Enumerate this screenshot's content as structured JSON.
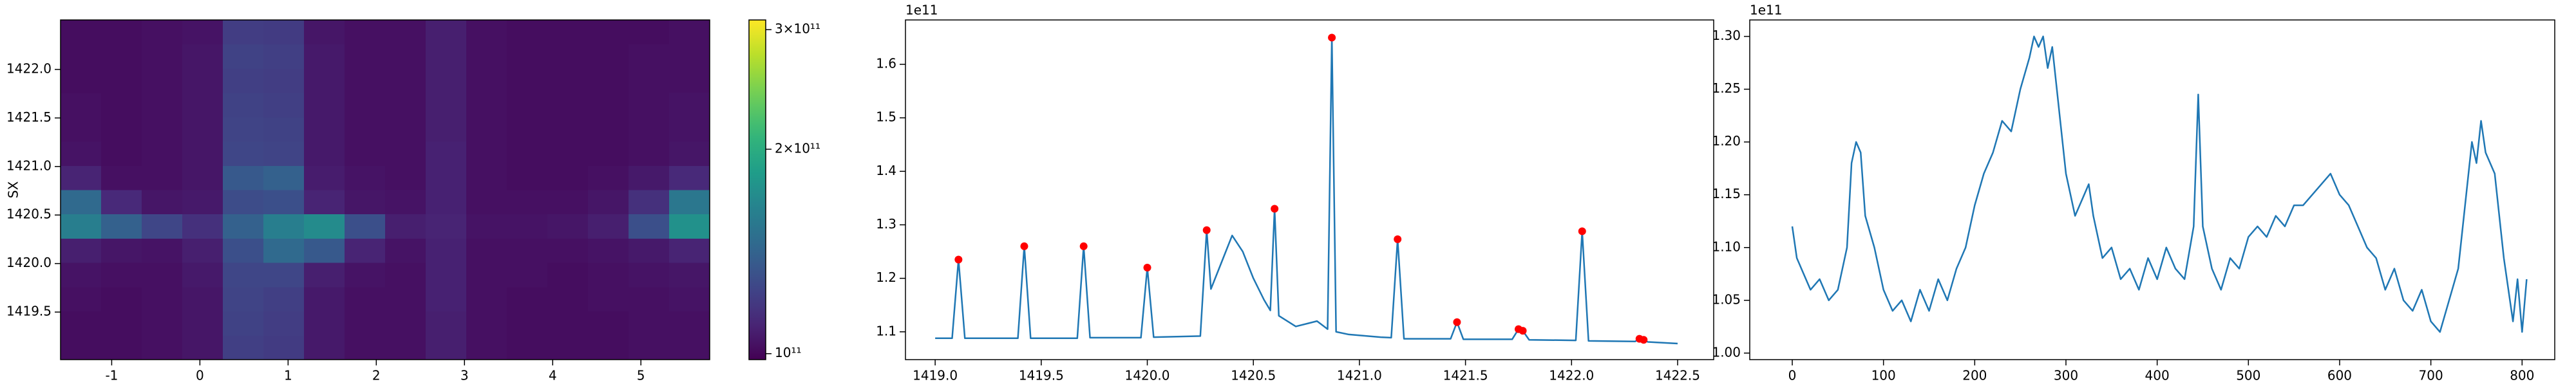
{
  "chart_data": [
    {
      "type": "heatmap",
      "y_label": "SX",
      "colormap": "viridis",
      "cscale": "log",
      "xlim": [
        -1.58,
        5.78
      ],
      "ylim": [
        1419.01,
        1422.51
      ],
      "xticks": [
        -1,
        0,
        1,
        2,
        3,
        4,
        5
      ],
      "yticks": [
        1419.5,
        {
          "value": 1420,
          "label": "1420.0"
        },
        1420.5,
        {
          "value": 1421,
          "label": "1421.0"
        },
        1421.5,
        {
          "value": 1422,
          "label": "1422.0"
        }
      ],
      "x_edges": [
        -1.58,
        -1.12,
        -0.66,
        -0.2,
        0.26,
        0.72,
        1.18,
        1.64,
        2.1,
        2.56,
        3.02,
        3.48,
        3.94,
        4.4,
        4.86,
        5.32,
        5.78
      ],
      "y_edges": [
        1419.01,
        1419.26,
        1419.51,
        1419.76,
        1420.01,
        1420.26,
        1420.51,
        1420.76,
        1421.01,
        1421.26,
        1421.51,
        1421.76,
        1422.01,
        1422.26,
        1422.51
      ],
      "z": [
        [
          102000000000.0,
          102000000000.0,
          103000000000.0,
          105000000000.0,
          122000000000.0,
          120000000000.0,
          106000000000.0,
          103000000000.0,
          103000000000.0,
          108000000000.0,
          103000000000.0,
          102000000000.0,
          102000000000.0,
          102000000000.0,
          103000000000.0,
          103000000000.0
        ],
        [
          102000000000.0,
          102000000000.0,
          103000000000.0,
          105000000000.0,
          123000000000.0,
          121000000000.0,
          106000000000.0,
          103000000000.0,
          103000000000.0,
          108000000000.0,
          103000000000.0,
          102000000000.0,
          102000000000.0,
          102000000000.0,
          103000000000.0,
          103000000000.0
        ],
        [
          103000000000.0,
          102000000000.0,
          103000000000.0,
          105000000000.0,
          124000000000.0,
          122000000000.0,
          106000000000.0,
          103000000000.0,
          103000000000.0,
          109000000000.0,
          103000000000.0,
          102000000000.0,
          102000000000.0,
          103000000000.0,
          103000000000.0,
          104000000000.0
        ],
        [
          104000000000.0,
          103000000000.0,
          103000000000.0,
          106000000000.0,
          125000000000.0,
          125000000000.0,
          108000000000.0,
          104000000000.0,
          103000000000.0,
          109000000000.0,
          103000000000.0,
          103000000000.0,
          102000000000.0,
          103000000000.0,
          104000000000.0,
          105000000000.0
        ],
        [
          108000000000.0,
          105000000000.0,
          104000000000.0,
          108000000000.0,
          130000000000.0,
          145000000000.0,
          135000000000.0,
          110000000000.0,
          104000000000.0,
          109000000000.0,
          103000000000.0,
          103000000000.0,
          103000000000.0,
          104000000000.0,
          106000000000.0,
          110000000000.0
        ],
        [
          160000000000.0,
          140000000000.0,
          125000000000.0,
          115000000000.0,
          140000000000.0,
          160000000000.0,
          170000000000.0,
          130000000000.0,
          108000000000.0,
          110000000000.0,
          104000000000.0,
          104000000000.0,
          105000000000.0,
          108000000000.0,
          130000000000.0,
          175000000000.0
        ],
        [
          145000000000.0,
          112000000000.0,
          105000000000.0,
          106000000000.0,
          128000000000.0,
          130000000000.0,
          110000000000.0,
          105000000000.0,
          104000000000.0,
          109000000000.0,
          103000000000.0,
          103000000000.0,
          103000000000.0,
          105000000000.0,
          115000000000.0,
          155000000000.0
        ],
        [
          110000000000.0,
          103000000000.0,
          103000000000.0,
          105000000000.0,
          135000000000.0,
          140000000000.0,
          107000000000.0,
          104000000000.0,
          103000000000.0,
          109000000000.0,
          103000000000.0,
          102000000000.0,
          102000000000.0,
          103000000000.0,
          106000000000.0,
          112000000000.0
        ],
        [
          104000000000.0,
          102000000000.0,
          103000000000.0,
          105000000000.0,
          125000000000.0,
          124000000000.0,
          106000000000.0,
          103000000000.0,
          103000000000.0,
          109000000000.0,
          103000000000.0,
          102000000000.0,
          102000000000.0,
          102000000000.0,
          103000000000.0,
          105000000000.0
        ],
        [
          103000000000.0,
          102000000000.0,
          103000000000.0,
          105000000000.0,
          124000000000.0,
          123000000000.0,
          106000000000.0,
          103000000000.0,
          103000000000.0,
          108000000000.0,
          103000000000.0,
          102000000000.0,
          102000000000.0,
          102000000000.0,
          103000000000.0,
          104000000000.0
        ],
        [
          103000000000.0,
          102000000000.0,
          103000000000.0,
          105000000000.0,
          123000000000.0,
          122000000000.0,
          106000000000.0,
          103000000000.0,
          103000000000.0,
          108000000000.0,
          103000000000.0,
          102000000000.0,
          102000000000.0,
          102000000000.0,
          103000000000.0,
          104000000000.0
        ],
        [
          102000000000.0,
          102000000000.0,
          103000000000.0,
          105000000000.0,
          122000000000.0,
          121000000000.0,
          106000000000.0,
          103000000000.0,
          103000000000.0,
          108000000000.0,
          103000000000.0,
          102000000000.0,
          102000000000.0,
          102000000000.0,
          103000000000.0,
          103000000000.0
        ],
        [
          102000000000.0,
          102000000000.0,
          103000000000.0,
          105000000000.0,
          123000000000.0,
          122000000000.0,
          106000000000.0,
          103000000000.0,
          103000000000.0,
          108000000000.0,
          103000000000.0,
          102000000000.0,
          102000000000.0,
          102000000000.0,
          103000000000.0,
          103000000000.0
        ],
        [
          102000000000.0,
          102000000000.0,
          103000000000.0,
          104000000000.0,
          121000000000.0,
          120000000000.0,
          105000000000.0,
          103000000000.0,
          103000000000.0,
          108000000000.0,
          103000000000.0,
          102000000000.0,
          102000000000.0,
          102000000000.0,
          102000000000.0,
          103000000000.0
        ]
      ],
      "clim": [
        98000000000.0,
        310000000000.0
      ],
      "cticks": [
        {
          "value": 100000000000.0,
          "label": "10¹¹"
        },
        {
          "value": 200000000000.0,
          "label": "2×10¹¹"
        },
        {
          "value": 300000000000.0,
          "label": "3×10¹¹"
        }
      ]
    },
    {
      "type": "line",
      "offset_label": "1e11",
      "xlim": [
        1418.86,
        1422.67
      ],
      "ylim": [
        1.048,
        1.683
      ],
      "xticks": [
        {
          "value": 1419,
          "label": "1419.0"
        },
        1419.5,
        {
          "value": 1420,
          "label": "1420.0"
        },
        1420.5,
        {
          "value": 1421,
          "label": "1421.0"
        },
        1421.5,
        {
          "value": 1422,
          "label": "1422.0"
        },
        1422.5
      ],
      "yticks": [
        1.1,
        1.2,
        1.3,
        1.4,
        1.5,
        1.6
      ],
      "series": [
        {
          "color": "#1f77b4",
          "style": "line",
          "x": [
            1419.0,
            1419.08,
            1419.11,
            1419.14,
            1419.39,
            1419.42,
            1419.45,
            1419.67,
            1419.7,
            1419.73,
            1419.97,
            1420.0,
            1420.03,
            1420.25,
            1420.28,
            1420.3,
            1420.34,
            1420.4,
            1420.45,
            1420.5,
            1420.55,
            1420.58,
            1420.6,
            1420.62,
            1420.7,
            1420.8,
            1420.85,
            1420.87,
            1420.89,
            1420.95,
            1421.1,
            1421.15,
            1421.18,
            1421.21,
            1421.43,
            1421.46,
            1421.49,
            1421.72,
            1421.75,
            1421.77,
            1421.8,
            1422.02,
            1422.05,
            1422.08,
            1422.3,
            1422.32,
            1422.34,
            1422.36,
            1422.5
          ],
          "values": [
            1.088,
            1.088,
            1.235,
            1.088,
            1.088,
            1.26,
            1.088,
            1.088,
            1.26,
            1.089,
            1.089,
            1.22,
            1.09,
            1.092,
            1.29,
            1.18,
            1.22,
            1.28,
            1.25,
            1.2,
            1.16,
            1.14,
            1.33,
            1.13,
            1.11,
            1.12,
            1.105,
            1.65,
            1.1,
            1.095,
            1.09,
            1.089,
            1.273,
            1.087,
            1.087,
            1.118,
            1.086,
            1.086,
            1.105,
            1.102,
            1.085,
            1.084,
            1.288,
            1.083,
            1.082,
            1.087,
            1.085,
            1.081,
            1.078
          ]
        },
        {
          "color": "#ff0000",
          "style": "markers",
          "x": [
            1419.11,
            1419.42,
            1419.7,
            1420.0,
            1420.28,
            1420.6,
            1420.87,
            1421.18,
            1421.46,
            1421.75,
            1421.77,
            1422.05,
            1422.32,
            1422.34
          ],
          "values": [
            1.235,
            1.26,
            1.26,
            1.22,
            1.29,
            1.33,
            1.65,
            1.273,
            1.118,
            1.105,
            1.102,
            1.288,
            1.087,
            1.085
          ]
        }
      ]
    },
    {
      "type": "line",
      "offset_label": "1e11",
      "xlim": [
        -46.6,
        835.8
      ],
      "ylim": [
        0.9938,
        1.3156
      ],
      "xticks": [
        0,
        100,
        200,
        300,
        400,
        500,
        600,
        700,
        800
      ],
      "yticks": [
        {
          "value": 1,
          "label": "1.00"
        },
        1.05,
        {
          "value": 1.1,
          "label": "1.10"
        },
        1.15,
        {
          "value": 1.2,
          "label": "1.20"
        },
        1.25,
        {
          "value": 1.3,
          "label": "1.30"
        }
      ],
      "series": [
        {
          "color": "#1f77b4",
          "style": "line",
          "x": [
            0,
            5,
            10,
            20,
            30,
            40,
            50,
            60,
            65,
            70,
            75,
            80,
            90,
            100,
            110,
            120,
            130,
            140,
            150,
            160,
            170,
            180,
            190,
            200,
            210,
            220,
            230,
            240,
            250,
            260,
            265,
            270,
            275,
            280,
            285,
            290,
            300,
            310,
            320,
            325,
            330,
            340,
            350,
            360,
            370,
            380,
            390,
            400,
            410,
            420,
            430,
            440,
            445,
            450,
            460,
            470,
            480,
            490,
            500,
            510,
            520,
            530,
            540,
            550,
            560,
            570,
            580,
            590,
            600,
            610,
            620,
            630,
            640,
            650,
            660,
            670,
            680,
            690,
            700,
            710,
            720,
            730,
            740,
            745,
            750,
            755,
            760,
            770,
            780,
            790,
            795,
            800,
            805
          ],
          "values": [
            1.12,
            1.09,
            1.08,
            1.06,
            1.07,
            1.05,
            1.06,
            1.1,
            1.18,
            1.2,
            1.19,
            1.13,
            1.1,
            1.06,
            1.04,
            1.05,
            1.03,
            1.06,
            1.04,
            1.07,
            1.05,
            1.08,
            1.1,
            1.14,
            1.17,
            1.19,
            1.22,
            1.21,
            1.25,
            1.28,
            1.3,
            1.29,
            1.3,
            1.27,
            1.29,
            1.25,
            1.17,
            1.13,
            1.15,
            1.16,
            1.13,
            1.09,
            1.1,
            1.07,
            1.08,
            1.06,
            1.09,
            1.07,
            1.1,
            1.08,
            1.07,
            1.12,
            1.245,
            1.12,
            1.08,
            1.06,
            1.09,
            1.08,
            1.11,
            1.12,
            1.11,
            1.13,
            1.12,
            1.14,
            1.14,
            1.15,
            1.16,
            1.17,
            1.15,
            1.14,
            1.12,
            1.1,
            1.09,
            1.06,
            1.08,
            1.05,
            1.04,
            1.06,
            1.03,
            1.02,
            1.05,
            1.08,
            1.16,
            1.2,
            1.18,
            1.22,
            1.19,
            1.17,
            1.09,
            1.03,
            1.07,
            1.02,
            1.07
          ]
        }
      ]
    }
  ]
}
